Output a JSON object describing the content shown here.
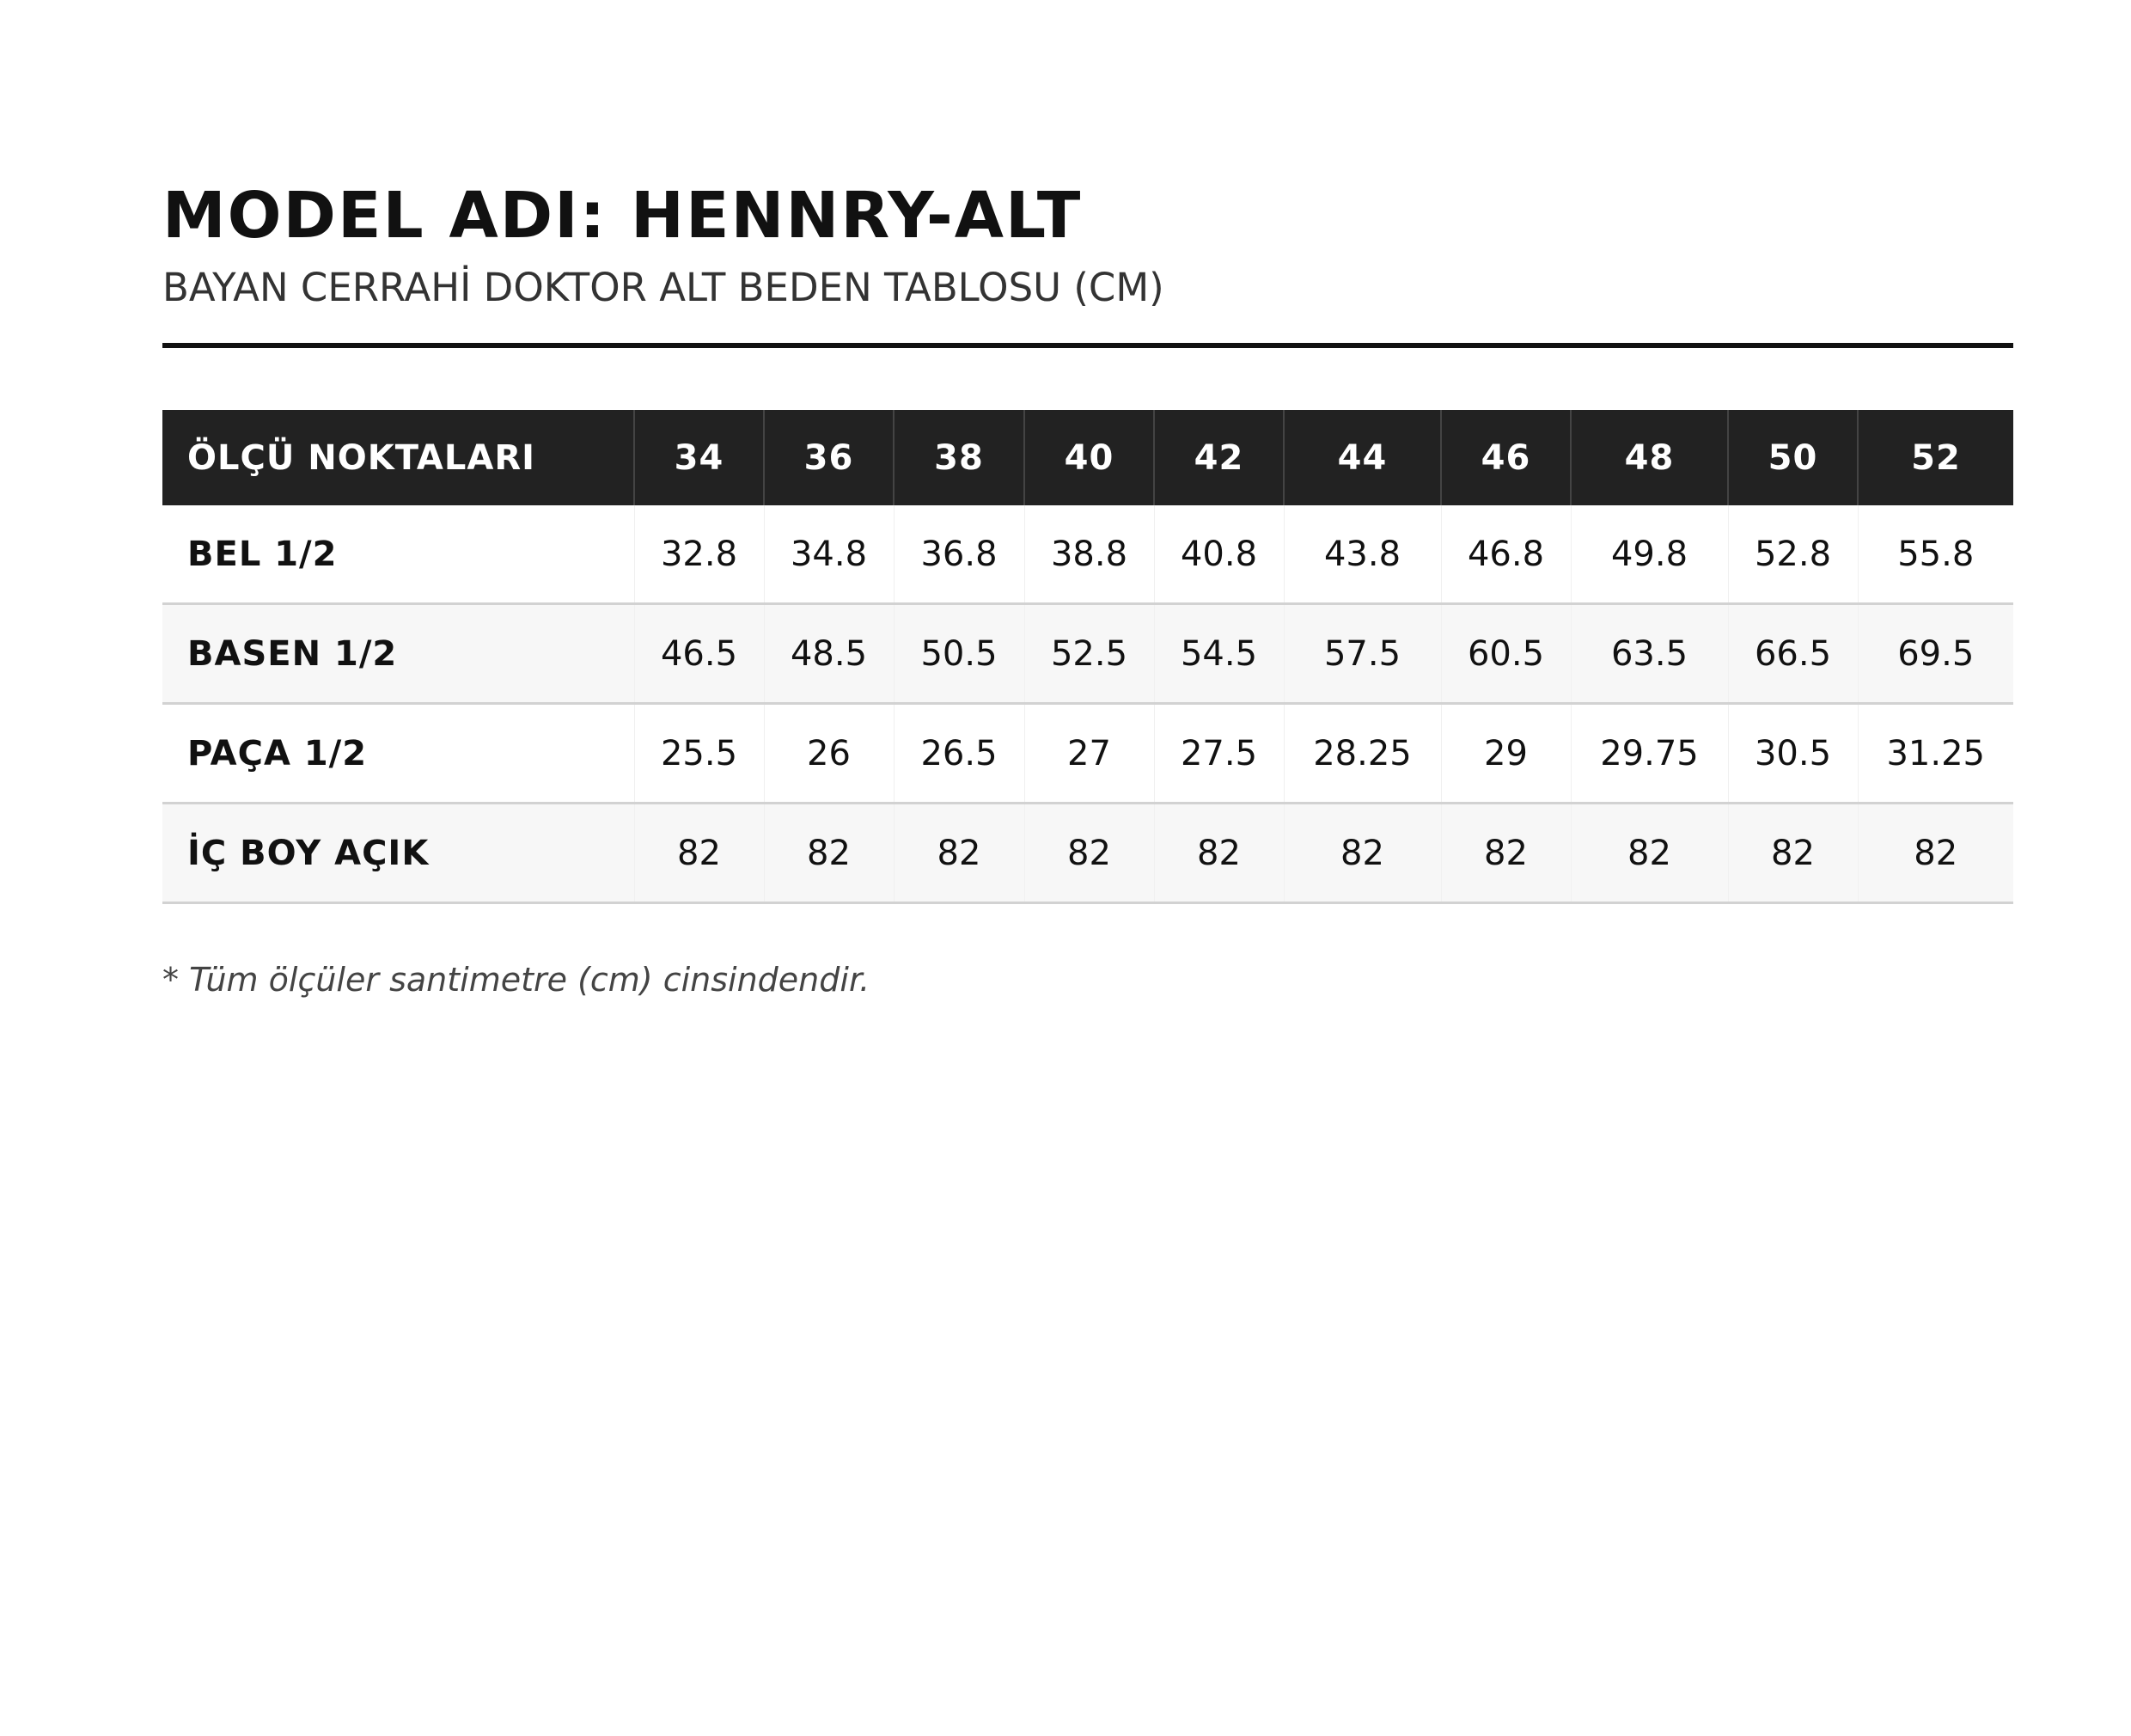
{
  "header": {
    "title": "MODEL ADI: HENNRY-ALT",
    "subtitle": "BAYAN CERRAHİ DOKTOR ALT BEDEN TABLOSU (CM)"
  },
  "table": {
    "columns": [
      "ÖLÇÜ NOKTALARI",
      "34",
      "36",
      "38",
      "40",
      "42",
      "44",
      "46",
      "48",
      "50",
      "52"
    ],
    "rows": [
      [
        "BEL 1/2",
        32.8,
        34.8,
        36.8,
        38.8,
        40.8,
        43.8,
        46.8,
        49.8,
        52.8,
        55.8
      ],
      [
        "BASEN 1/2",
        46.5,
        48.5,
        50.5,
        52.5,
        54.5,
        57.5,
        60.5,
        63.5,
        66.5,
        69.5
      ],
      [
        "PAÇA 1/2",
        25.5,
        26,
        26.5,
        27,
        27.5,
        28.25,
        29,
        29.75,
        30.5,
        31.25
      ],
      [
        "İÇ BOY AÇIK",
        82,
        82,
        82,
        82,
        82,
        82,
        82,
        82,
        82,
        82
      ]
    ]
  },
  "footnote": "* Tüm ölçüler santimetre (cm) cinsindendir."
}
